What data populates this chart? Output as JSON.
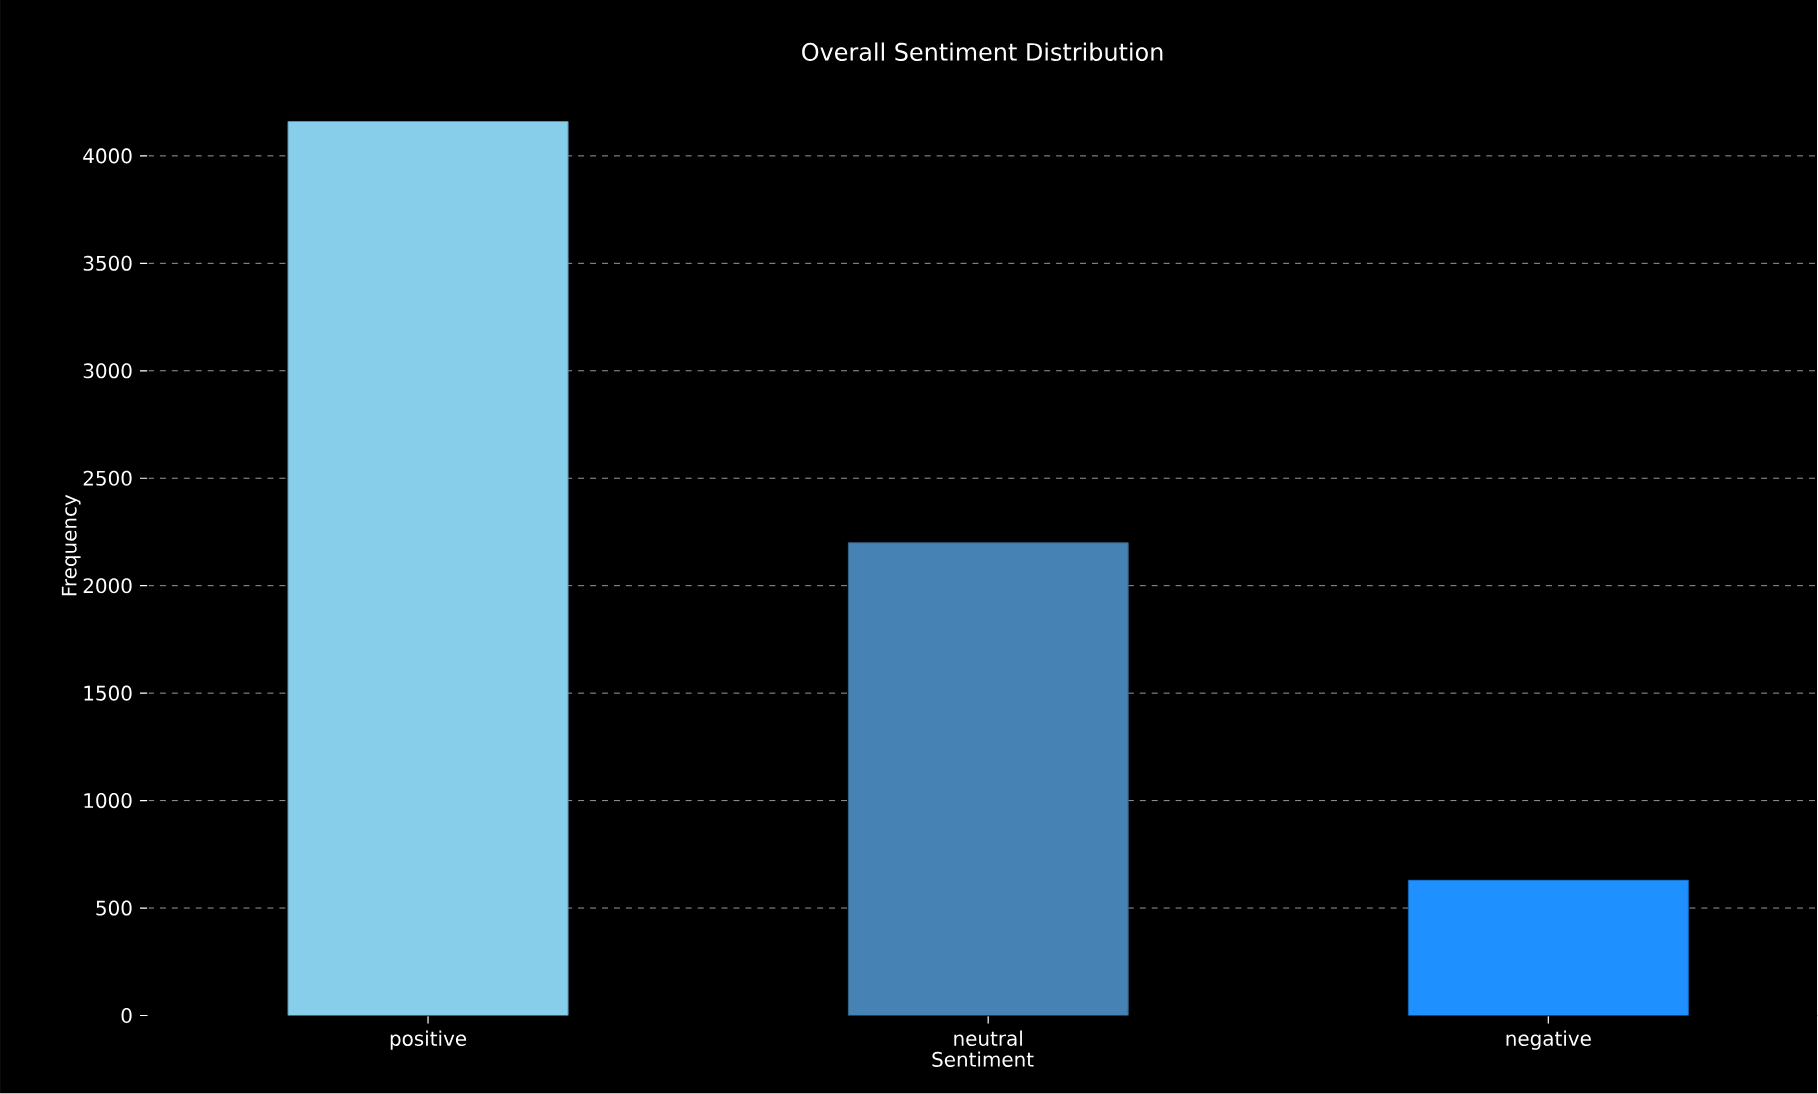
{
  "chart_data": {
    "type": "bar",
    "title": "Overall Sentiment Distribution",
    "xlabel": "Sentiment",
    "ylabel": "Frequency",
    "categories": [
      "positive",
      "neutral",
      "negative"
    ],
    "values": [
      4160,
      2200,
      630
    ],
    "colors": [
      "#87ceeb",
      "#4682b4",
      "#1e90ff"
    ],
    "ylim": [
      0,
      4372
    ],
    "yticks": [
      0,
      500,
      1000,
      1500,
      2000,
      2500,
      3000,
      3500,
      4000
    ],
    "grid": "y"
  }
}
